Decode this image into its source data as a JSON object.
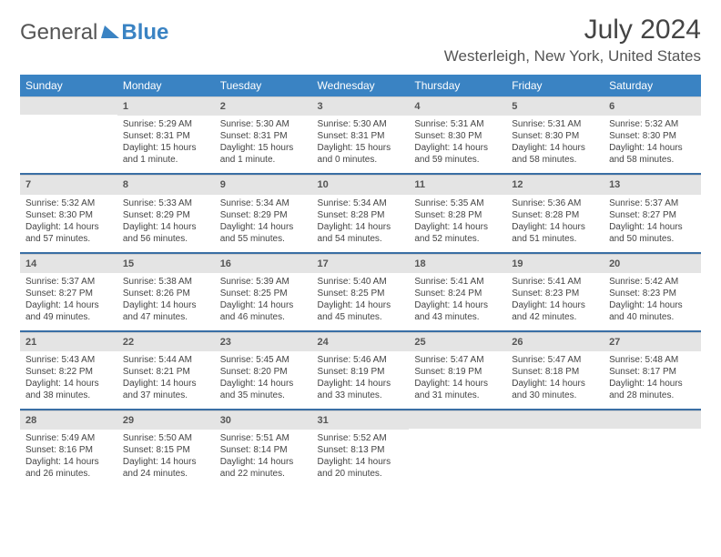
{
  "logo": {
    "general": "General",
    "blue": "Blue"
  },
  "title": "July 2024",
  "location": "Westerleigh, New York, United States",
  "colors": {
    "header_bg": "#3a83c3",
    "divider": "#3a6fa5",
    "daynum_bg": "#e4e4e4",
    "text": "#444444"
  },
  "day_names": [
    "Sunday",
    "Monday",
    "Tuesday",
    "Wednesday",
    "Thursday",
    "Friday",
    "Saturday"
  ],
  "weeks": [
    [
      {
        "n": "",
        "sr": "",
        "ss": "",
        "dl": ""
      },
      {
        "n": "1",
        "sr": "Sunrise: 5:29 AM",
        "ss": "Sunset: 8:31 PM",
        "dl": "Daylight: 15 hours and 1 minute."
      },
      {
        "n": "2",
        "sr": "Sunrise: 5:30 AM",
        "ss": "Sunset: 8:31 PM",
        "dl": "Daylight: 15 hours and 1 minute."
      },
      {
        "n": "3",
        "sr": "Sunrise: 5:30 AM",
        "ss": "Sunset: 8:31 PM",
        "dl": "Daylight: 15 hours and 0 minutes."
      },
      {
        "n": "4",
        "sr": "Sunrise: 5:31 AM",
        "ss": "Sunset: 8:30 PM",
        "dl": "Daylight: 14 hours and 59 minutes."
      },
      {
        "n": "5",
        "sr": "Sunrise: 5:31 AM",
        "ss": "Sunset: 8:30 PM",
        "dl": "Daylight: 14 hours and 58 minutes."
      },
      {
        "n": "6",
        "sr": "Sunrise: 5:32 AM",
        "ss": "Sunset: 8:30 PM",
        "dl": "Daylight: 14 hours and 58 minutes."
      }
    ],
    [
      {
        "n": "7",
        "sr": "Sunrise: 5:32 AM",
        "ss": "Sunset: 8:30 PM",
        "dl": "Daylight: 14 hours and 57 minutes."
      },
      {
        "n": "8",
        "sr": "Sunrise: 5:33 AM",
        "ss": "Sunset: 8:29 PM",
        "dl": "Daylight: 14 hours and 56 minutes."
      },
      {
        "n": "9",
        "sr": "Sunrise: 5:34 AM",
        "ss": "Sunset: 8:29 PM",
        "dl": "Daylight: 14 hours and 55 minutes."
      },
      {
        "n": "10",
        "sr": "Sunrise: 5:34 AM",
        "ss": "Sunset: 8:28 PM",
        "dl": "Daylight: 14 hours and 54 minutes."
      },
      {
        "n": "11",
        "sr": "Sunrise: 5:35 AM",
        "ss": "Sunset: 8:28 PM",
        "dl": "Daylight: 14 hours and 52 minutes."
      },
      {
        "n": "12",
        "sr": "Sunrise: 5:36 AM",
        "ss": "Sunset: 8:28 PM",
        "dl": "Daylight: 14 hours and 51 minutes."
      },
      {
        "n": "13",
        "sr": "Sunrise: 5:37 AM",
        "ss": "Sunset: 8:27 PM",
        "dl": "Daylight: 14 hours and 50 minutes."
      }
    ],
    [
      {
        "n": "14",
        "sr": "Sunrise: 5:37 AM",
        "ss": "Sunset: 8:27 PM",
        "dl": "Daylight: 14 hours and 49 minutes."
      },
      {
        "n": "15",
        "sr": "Sunrise: 5:38 AM",
        "ss": "Sunset: 8:26 PM",
        "dl": "Daylight: 14 hours and 47 minutes."
      },
      {
        "n": "16",
        "sr": "Sunrise: 5:39 AM",
        "ss": "Sunset: 8:25 PM",
        "dl": "Daylight: 14 hours and 46 minutes."
      },
      {
        "n": "17",
        "sr": "Sunrise: 5:40 AM",
        "ss": "Sunset: 8:25 PM",
        "dl": "Daylight: 14 hours and 45 minutes."
      },
      {
        "n": "18",
        "sr": "Sunrise: 5:41 AM",
        "ss": "Sunset: 8:24 PM",
        "dl": "Daylight: 14 hours and 43 minutes."
      },
      {
        "n": "19",
        "sr": "Sunrise: 5:41 AM",
        "ss": "Sunset: 8:23 PM",
        "dl": "Daylight: 14 hours and 42 minutes."
      },
      {
        "n": "20",
        "sr": "Sunrise: 5:42 AM",
        "ss": "Sunset: 8:23 PM",
        "dl": "Daylight: 14 hours and 40 minutes."
      }
    ],
    [
      {
        "n": "21",
        "sr": "Sunrise: 5:43 AM",
        "ss": "Sunset: 8:22 PM",
        "dl": "Daylight: 14 hours and 38 minutes."
      },
      {
        "n": "22",
        "sr": "Sunrise: 5:44 AM",
        "ss": "Sunset: 8:21 PM",
        "dl": "Daylight: 14 hours and 37 minutes."
      },
      {
        "n": "23",
        "sr": "Sunrise: 5:45 AM",
        "ss": "Sunset: 8:20 PM",
        "dl": "Daylight: 14 hours and 35 minutes."
      },
      {
        "n": "24",
        "sr": "Sunrise: 5:46 AM",
        "ss": "Sunset: 8:19 PM",
        "dl": "Daylight: 14 hours and 33 minutes."
      },
      {
        "n": "25",
        "sr": "Sunrise: 5:47 AM",
        "ss": "Sunset: 8:19 PM",
        "dl": "Daylight: 14 hours and 31 minutes."
      },
      {
        "n": "26",
        "sr": "Sunrise: 5:47 AM",
        "ss": "Sunset: 8:18 PM",
        "dl": "Daylight: 14 hours and 30 minutes."
      },
      {
        "n": "27",
        "sr": "Sunrise: 5:48 AM",
        "ss": "Sunset: 8:17 PM",
        "dl": "Daylight: 14 hours and 28 minutes."
      }
    ],
    [
      {
        "n": "28",
        "sr": "Sunrise: 5:49 AM",
        "ss": "Sunset: 8:16 PM",
        "dl": "Daylight: 14 hours and 26 minutes."
      },
      {
        "n": "29",
        "sr": "Sunrise: 5:50 AM",
        "ss": "Sunset: 8:15 PM",
        "dl": "Daylight: 14 hours and 24 minutes."
      },
      {
        "n": "30",
        "sr": "Sunrise: 5:51 AM",
        "ss": "Sunset: 8:14 PM",
        "dl": "Daylight: 14 hours and 22 minutes."
      },
      {
        "n": "31",
        "sr": "Sunrise: 5:52 AM",
        "ss": "Sunset: 8:13 PM",
        "dl": "Daylight: 14 hours and 20 minutes."
      },
      {
        "n": "",
        "sr": "",
        "ss": "",
        "dl": ""
      },
      {
        "n": "",
        "sr": "",
        "ss": "",
        "dl": ""
      },
      {
        "n": "",
        "sr": "",
        "ss": "",
        "dl": ""
      }
    ]
  ]
}
